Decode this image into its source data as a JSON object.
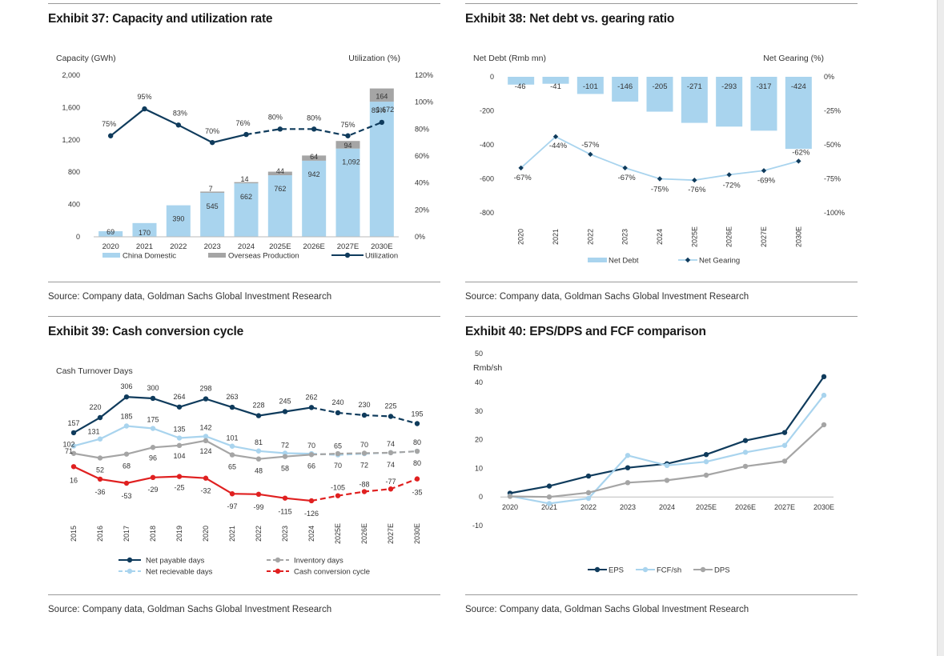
{
  "colors": {
    "light_blue": "#a9d4ee",
    "navy": "#0f3b5c",
    "grey": "#a5a5a5",
    "red": "#e02020",
    "text": "#333333"
  },
  "exhibits": [
    {
      "title": "Exhibit 37: Capacity and utilization rate",
      "source": "Source: Company data, Goldman Sachs Global Investment Research"
    },
    {
      "title": "Exhibit 38: Net debt vs. gearing ratio",
      "source": "Source: Company data, Goldman Sachs Global Investment Research"
    },
    {
      "title": "Exhibit 39: Cash conversion cycle",
      "source": "Source: Company data, Goldman Sachs Global Investment Research"
    },
    {
      "title": "Exhibit 40: EPS/DPS and FCF comparison",
      "source": "Source: Company data, Goldman Sachs Global Investment Research"
    }
  ],
  "chart_data": [
    {
      "type": "bar",
      "categories": [
        "2020",
        "2021",
        "2022",
        "2023",
        "2024",
        "2025E",
        "2026E",
        "2027E",
        "2030E"
      ],
      "ylabel_left": "Capacity (GWh)",
      "ylabel_right": "Utilization (%)",
      "ylim": [
        0,
        2000
      ],
      "y2lim": [
        0,
        120
      ],
      "y_ticks": [
        "0",
        "400",
        "800",
        "1,200",
        "1,600",
        "2,000"
      ],
      "y2_ticks": [
        "0%",
        "20%",
        "40%",
        "60%",
        "80%",
        "100%",
        "120%"
      ],
      "series": [
        {
          "name": "China Domestic",
          "values": [
            69,
            170,
            390,
            545,
            662,
            762,
            942,
            1092,
            1672
          ],
          "labels": [
            "69",
            "170",
            "390",
            "545",
            "662",
            "762",
            "942",
            "1,092",
            "1,672"
          ]
        },
        {
          "name": "Overseas Production",
          "values": [
            null,
            null,
            null,
            7,
            14,
            44,
            64,
            94,
            164
          ],
          "labels": [
            "",
            "",
            "",
            "7",
            "14",
            "44",
            "64",
            "94",
            "164"
          ]
        },
        {
          "name": "Utilization",
          "values": [
            75,
            95,
            83,
            70,
            76,
            80,
            80,
            75,
            85
          ],
          "labels": [
            "75%",
            "95%",
            "83%",
            "70%",
            "76%",
            "80%",
            "80%",
            "75%",
            "85%"
          ],
          "forecast_from": "2025E"
        }
      ]
    },
    {
      "type": "bar",
      "categories": [
        "2020",
        "2021",
        "2022",
        "2023",
        "2024",
        "2025E",
        "2026E",
        "2027E",
        "2030E"
      ],
      "ylabel_left": "Net Debt (Rmb mn)",
      "ylabel_right": "Net Gearing (%)",
      "ylim": [
        -800,
        0
      ],
      "y2lim": [
        -100,
        0
      ],
      "y_ticks": [
        "0",
        "-200",
        "-400",
        "-600",
        "-800"
      ],
      "y2_ticks": [
        "0%",
        "-25%",
        "-50%",
        "-75%",
        "-100%"
      ],
      "series": [
        {
          "name": "Net Debt",
          "values": [
            -46,
            -41,
            -101,
            -146,
            -205,
            -271,
            -293,
            -317,
            -424
          ],
          "labels": [
            "-46",
            "-41",
            "-101",
            "-146",
            "-205",
            "-271",
            "-293",
            "-317",
            "-424"
          ]
        },
        {
          "name": "Net Gearing",
          "values": [
            -67,
            -44,
            -57,
            -67,
            -75,
            -76,
            -72,
            -69,
            -62
          ],
          "labels": [
            "-67%",
            "-44%",
            "-57%",
            "-67%",
            "-75%",
            "-76%",
            "-72%",
            "-69%",
            "-62%"
          ]
        }
      ]
    },
    {
      "type": "line",
      "categories": [
        "2015",
        "2016",
        "2017",
        "2018",
        "2019",
        "2020",
        "2021",
        "2022",
        "2023",
        "2024",
        "2025E",
        "2026E",
        "2027E",
        "2030E"
      ],
      "ylabel": "Cash Turnover Days",
      "forecast_from": "2025E",
      "series": [
        {
          "name": "Net payable days",
          "values": [
            157,
            220,
            306,
            300,
            264,
            298,
            263,
            228,
            245,
            262,
            240,
            230,
            225,
            195
          ]
        },
        {
          "name": "Net recievable days",
          "values": [
            102,
            131,
            185,
            175,
            135,
            142,
            101,
            81,
            72,
            70,
            65,
            70,
            74,
            80
          ]
        },
        {
          "name": "Inventory days",
          "values": [
            71,
            52,
            68,
            96,
            104,
            124,
            65,
            48,
            58,
            66,
            70,
            72,
            74,
            80
          ]
        },
        {
          "name": "Cash conversion cycle",
          "values": [
            16,
            -36,
            -53,
            -29,
            -25,
            -32,
            -97,
            -99,
            -115,
            -126,
            -105,
            -88,
            -77,
            -35
          ]
        }
      ]
    },
    {
      "type": "line",
      "categories": [
        "2020",
        "2021",
        "2022",
        "2023",
        "2024",
        "2025E",
        "2026E",
        "2027E",
        "2030E"
      ],
      "ylabel": "Rmb/sh",
      "ylim": [
        -10,
        50
      ],
      "y_ticks": [
        "-10",
        "0",
        "10",
        "20",
        "30",
        "40",
        "50"
      ],
      "series": [
        {
          "name": "EPS",
          "values": [
            1.3,
            3.8,
            7.3,
            10.2,
            11.6,
            14.8,
            19.7,
            22.5,
            42
          ]
        },
        {
          "name": "FCF/sh",
          "values": [
            0.3,
            -2.3,
            -0.5,
            14.5,
            11,
            12.3,
            15.6,
            18,
            35.5
          ]
        },
        {
          "name": "DPS",
          "values": [
            0.2,
            0,
            1.5,
            5,
            5.8,
            7.6,
            10.7,
            12.5,
            25.2
          ]
        }
      ]
    }
  ]
}
